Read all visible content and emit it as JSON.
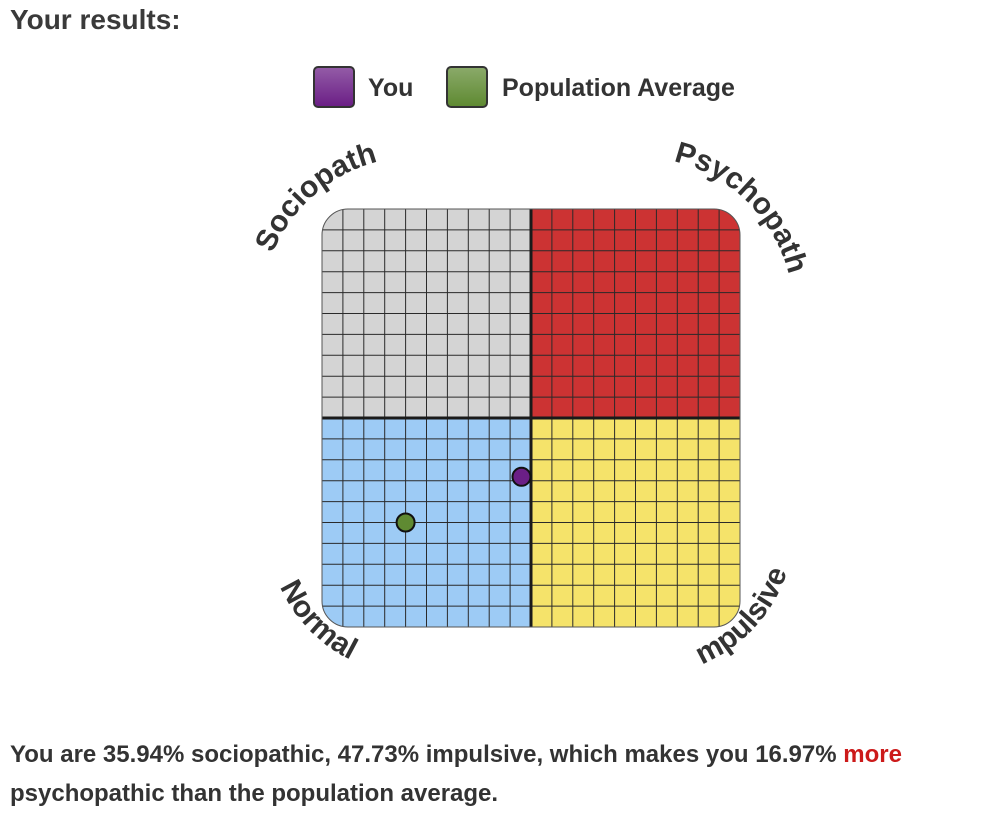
{
  "header": {
    "title": "Your results:"
  },
  "legend": [
    {
      "label": "You",
      "color": "#6b1f86"
    },
    {
      "label": "Population Average",
      "color": "#5f8a32"
    }
  ],
  "chart_data": {
    "type": "scatter",
    "corner_labels": {
      "top_left": "Sociopath",
      "top_right": "Psychopath",
      "bottom_left": "Normal",
      "bottom_right": "Impulsive"
    },
    "quadrant_colors": {
      "top_left": "#d4d4d4",
      "top_right": "#cc3333",
      "bottom_left": "#9dcbf5",
      "bottom_right": "#f5e36a"
    },
    "grid": true,
    "grid_divisions": 20,
    "xlim": [
      0,
      100
    ],
    "ylim": [
      0,
      100
    ],
    "series": [
      {
        "name": "You",
        "color": "#6b1f86",
        "x": 47.73,
        "y": 35.94
      },
      {
        "name": "Population Average",
        "color": "#5f8a32",
        "x": 20,
        "y": 25
      }
    ]
  },
  "summary": {
    "text_before": "You are 35.94% sociopathic, 47.73% impulsive, which makes you 16.97% ",
    "highlight": "more",
    "text_after": " psychopathic than the population average."
  }
}
